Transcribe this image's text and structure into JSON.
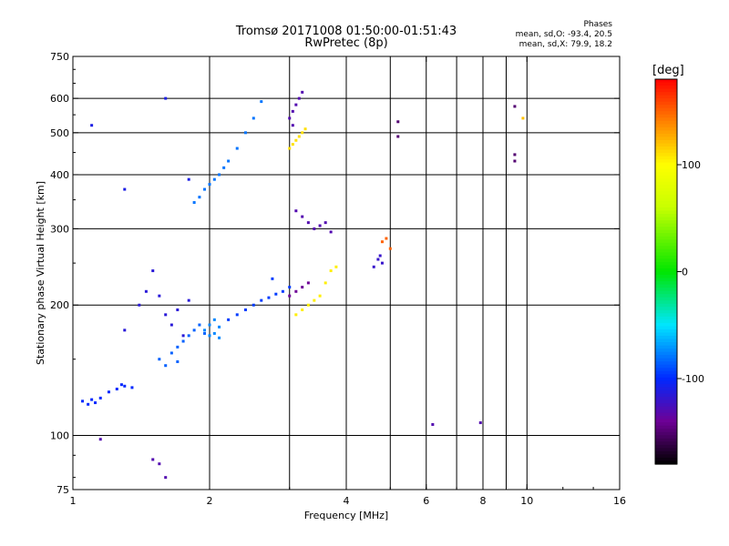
{
  "header": {
    "title_line1": "Tromsø 20171008 01:50:00-01:51:43",
    "title_line2": "RwPretec (8p)"
  },
  "stats": {
    "heading": "Phases",
    "line_o": "mean, sd,O: -93.4, 20.5",
    "line_x": "mean, sd,X: 79.9, 18.2"
  },
  "colorbar": {
    "unit": "[deg]",
    "range": [
      -180,
      180
    ],
    "tick_labels": [
      "100",
      "0",
      "-100"
    ],
    "tick_values": [
      100,
      0,
      -100
    ]
  },
  "chart_data": {
    "type": "scatter",
    "title": "Tromsø 20171008 01:50:00-01:51:43",
    "subtitle": "RwPretec (8p)",
    "xlabel": "Frequency [MHz]",
    "ylabel": "Stationary phase Virtual Height [km]",
    "x_scale": "log",
    "y_scale": "log",
    "xlim": [
      1,
      16
    ],
    "ylim": [
      75,
      750
    ],
    "x_ticks": [
      1,
      2,
      4,
      6,
      8,
      10,
      16
    ],
    "y_ticks": [
      75,
      100,
      200,
      300,
      400,
      500,
      600,
      750
    ],
    "x_grid": [
      2,
      3,
      4,
      5,
      6,
      7,
      8,
      9,
      10
    ],
    "y_grid": [
      100,
      200,
      300,
      400,
      500,
      600
    ],
    "grid": true,
    "color_variable": "phase [deg]",
    "series": [
      {
        "phase": -100,
        "points": [
          [
            1.05,
            120
          ],
          [
            1.08,
            118
          ],
          [
            1.1,
            121
          ],
          [
            1.12,
            119
          ],
          [
            1.15,
            122
          ],
          [
            1.2,
            126
          ],
          [
            1.25,
            128
          ],
          [
            1.3,
            130
          ],
          [
            1.35,
            129
          ],
          [
            1.28,
            131
          ]
        ]
      },
      {
        "phase": -115,
        "points": [
          [
            1.3,
            175
          ],
          [
            1.4,
            200
          ],
          [
            1.45,
            215
          ],
          [
            1.5,
            240
          ],
          [
            1.55,
            210
          ],
          [
            1.6,
            190
          ],
          [
            1.65,
            180
          ],
          [
            1.7,
            195
          ],
          [
            1.75,
            170
          ],
          [
            1.8,
            205
          ]
        ]
      },
      {
        "phase": -85,
        "points": [
          [
            1.55,
            150
          ],
          [
            1.6,
            145
          ],
          [
            1.65,
            155
          ],
          [
            1.7,
            160
          ],
          [
            1.75,
            165
          ],
          [
            1.8,
            170
          ],
          [
            1.85,
            175
          ],
          [
            1.9,
            180
          ],
          [
            1.95,
            172
          ],
          [
            1.7,
            148
          ]
        ]
      },
      {
        "phase": -75,
        "points": [
          [
            1.95,
            175
          ],
          [
            2.0,
            180
          ],
          [
            2.05,
            185
          ],
          [
            2.1,
            178
          ],
          [
            2.0,
            170
          ],
          [
            2.05,
            172
          ],
          [
            2.1,
            168
          ]
        ]
      },
      {
        "phase": -95,
        "points": [
          [
            2.2,
            185
          ],
          [
            2.3,
            190
          ],
          [
            2.4,
            195
          ],
          [
            2.5,
            200
          ],
          [
            2.6,
            205
          ],
          [
            2.7,
            208
          ],
          [
            2.8,
            212
          ],
          [
            2.9,
            215
          ],
          [
            3.0,
            220
          ],
          [
            2.75,
            230
          ]
        ]
      },
      {
        "phase": -80,
        "points": [
          [
            1.85,
            345
          ],
          [
            1.9,
            355
          ],
          [
            1.95,
            370
          ],
          [
            2.0,
            380
          ],
          [
            2.05,
            390
          ],
          [
            2.1,
            400
          ],
          [
            2.15,
            415
          ],
          [
            2.2,
            430
          ],
          [
            2.3,
            460
          ],
          [
            2.4,
            500
          ],
          [
            2.5,
            540
          ],
          [
            2.6,
            590
          ]
        ]
      },
      {
        "phase": -130,
        "points": [
          [
            3.0,
            540
          ],
          [
            3.05,
            560
          ],
          [
            3.1,
            580
          ],
          [
            3.15,
            600
          ],
          [
            3.2,
            620
          ],
          [
            3.05,
            520
          ]
        ]
      },
      {
        "phase": 110,
        "points": [
          [
            3.0,
            460
          ],
          [
            3.05,
            470
          ],
          [
            3.1,
            480
          ],
          [
            3.15,
            490
          ],
          [
            3.2,
            500
          ],
          [
            3.25,
            510
          ]
        ]
      },
      {
        "phase": -130,
        "points": [
          [
            3.1,
            330
          ],
          [
            3.2,
            320
          ],
          [
            3.3,
            310
          ],
          [
            3.4,
            300
          ],
          [
            3.5,
            305
          ],
          [
            3.6,
            310
          ],
          [
            3.7,
            295
          ]
        ]
      },
      {
        "phase": 105,
        "points": [
          [
            3.1,
            190
          ],
          [
            3.2,
            195
          ],
          [
            3.3,
            200
          ],
          [
            3.4,
            205
          ],
          [
            3.5,
            210
          ],
          [
            3.6,
            225
          ],
          [
            3.7,
            240
          ],
          [
            3.8,
            245
          ]
        ]
      },
      {
        "phase": -140,
        "points": [
          [
            3.0,
            210
          ],
          [
            3.1,
            215
          ],
          [
            3.2,
            220
          ],
          [
            3.3,
            225
          ]
        ]
      },
      {
        "phase": -120,
        "points": [
          [
            4.6,
            245
          ],
          [
            4.7,
            255
          ],
          [
            4.75,
            260
          ],
          [
            4.8,
            250
          ]
        ]
      },
      {
        "phase": 150,
        "points": [
          [
            4.8,
            280
          ],
          [
            4.9,
            285
          ],
          [
            5.0,
            270
          ]
        ]
      },
      {
        "phase": -110,
        "points": [
          [
            1.1,
            520
          ],
          [
            1.3,
            370
          ],
          [
            1.6,
            600
          ],
          [
            1.8,
            390
          ]
        ]
      },
      {
        "phase": 120,
        "points": [
          [
            9.8,
            540
          ]
        ]
      },
      {
        "phase": -150,
        "points": [
          [
            9.4,
            575
          ],
          [
            9.4,
            445
          ],
          [
            9.4,
            430
          ],
          [
            5.2,
            530
          ],
          [
            5.2,
            490
          ]
        ]
      },
      {
        "phase": -130,
        "points": [
          [
            6.2,
            106
          ],
          [
            7.9,
            107
          ],
          [
            1.15,
            98
          ],
          [
            1.5,
            88
          ],
          [
            1.55,
            86
          ],
          [
            1.6,
            80
          ]
        ]
      }
    ]
  }
}
